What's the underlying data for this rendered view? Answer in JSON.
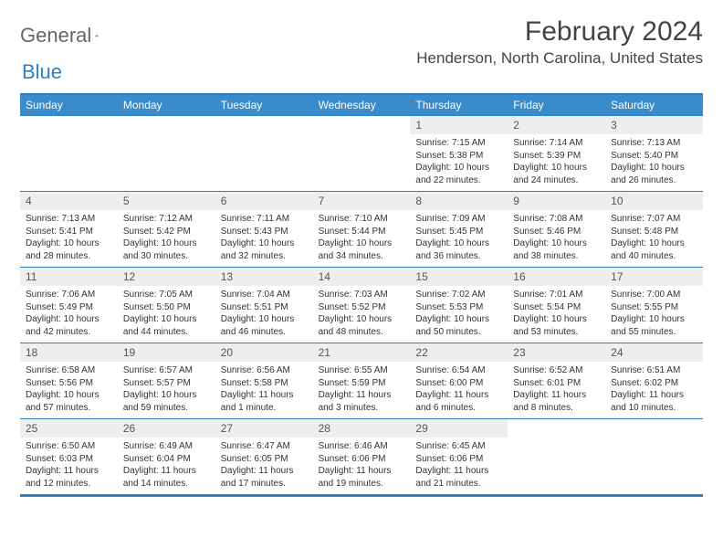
{
  "logo": {
    "word1": "General",
    "word2": "Blue"
  },
  "title": {
    "month": "February 2024",
    "location": "Henderson, North Carolina, United States"
  },
  "colors": {
    "header_bg": "#3a8bc9",
    "border": "#2f7fc3",
    "daynum_bg": "#eeeeee",
    "text": "#333333",
    "title_text": "#444444"
  },
  "daysOfWeek": [
    "Sunday",
    "Monday",
    "Tuesday",
    "Wednesday",
    "Thursday",
    "Friday",
    "Saturday"
  ],
  "weeks": [
    [
      {
        "empty": true
      },
      {
        "empty": true
      },
      {
        "empty": true
      },
      {
        "empty": true
      },
      {
        "num": "1",
        "sunrise": "Sunrise: 7:15 AM",
        "sunset": "Sunset: 5:38 PM",
        "daylight": "Daylight: 10 hours and 22 minutes."
      },
      {
        "num": "2",
        "sunrise": "Sunrise: 7:14 AM",
        "sunset": "Sunset: 5:39 PM",
        "daylight": "Daylight: 10 hours and 24 minutes."
      },
      {
        "num": "3",
        "sunrise": "Sunrise: 7:13 AM",
        "sunset": "Sunset: 5:40 PM",
        "daylight": "Daylight: 10 hours and 26 minutes."
      }
    ],
    [
      {
        "num": "4",
        "sunrise": "Sunrise: 7:13 AM",
        "sunset": "Sunset: 5:41 PM",
        "daylight": "Daylight: 10 hours and 28 minutes."
      },
      {
        "num": "5",
        "sunrise": "Sunrise: 7:12 AM",
        "sunset": "Sunset: 5:42 PM",
        "daylight": "Daylight: 10 hours and 30 minutes."
      },
      {
        "num": "6",
        "sunrise": "Sunrise: 7:11 AM",
        "sunset": "Sunset: 5:43 PM",
        "daylight": "Daylight: 10 hours and 32 minutes."
      },
      {
        "num": "7",
        "sunrise": "Sunrise: 7:10 AM",
        "sunset": "Sunset: 5:44 PM",
        "daylight": "Daylight: 10 hours and 34 minutes."
      },
      {
        "num": "8",
        "sunrise": "Sunrise: 7:09 AM",
        "sunset": "Sunset: 5:45 PM",
        "daylight": "Daylight: 10 hours and 36 minutes."
      },
      {
        "num": "9",
        "sunrise": "Sunrise: 7:08 AM",
        "sunset": "Sunset: 5:46 PM",
        "daylight": "Daylight: 10 hours and 38 minutes."
      },
      {
        "num": "10",
        "sunrise": "Sunrise: 7:07 AM",
        "sunset": "Sunset: 5:48 PM",
        "daylight": "Daylight: 10 hours and 40 minutes."
      }
    ],
    [
      {
        "num": "11",
        "sunrise": "Sunrise: 7:06 AM",
        "sunset": "Sunset: 5:49 PM",
        "daylight": "Daylight: 10 hours and 42 minutes."
      },
      {
        "num": "12",
        "sunrise": "Sunrise: 7:05 AM",
        "sunset": "Sunset: 5:50 PM",
        "daylight": "Daylight: 10 hours and 44 minutes."
      },
      {
        "num": "13",
        "sunrise": "Sunrise: 7:04 AM",
        "sunset": "Sunset: 5:51 PM",
        "daylight": "Daylight: 10 hours and 46 minutes."
      },
      {
        "num": "14",
        "sunrise": "Sunrise: 7:03 AM",
        "sunset": "Sunset: 5:52 PM",
        "daylight": "Daylight: 10 hours and 48 minutes."
      },
      {
        "num": "15",
        "sunrise": "Sunrise: 7:02 AM",
        "sunset": "Sunset: 5:53 PM",
        "daylight": "Daylight: 10 hours and 50 minutes."
      },
      {
        "num": "16",
        "sunrise": "Sunrise: 7:01 AM",
        "sunset": "Sunset: 5:54 PM",
        "daylight": "Daylight: 10 hours and 53 minutes."
      },
      {
        "num": "17",
        "sunrise": "Sunrise: 7:00 AM",
        "sunset": "Sunset: 5:55 PM",
        "daylight": "Daylight: 10 hours and 55 minutes."
      }
    ],
    [
      {
        "num": "18",
        "sunrise": "Sunrise: 6:58 AM",
        "sunset": "Sunset: 5:56 PM",
        "daylight": "Daylight: 10 hours and 57 minutes."
      },
      {
        "num": "19",
        "sunrise": "Sunrise: 6:57 AM",
        "sunset": "Sunset: 5:57 PM",
        "daylight": "Daylight: 10 hours and 59 minutes."
      },
      {
        "num": "20",
        "sunrise": "Sunrise: 6:56 AM",
        "sunset": "Sunset: 5:58 PM",
        "daylight": "Daylight: 11 hours and 1 minute."
      },
      {
        "num": "21",
        "sunrise": "Sunrise: 6:55 AM",
        "sunset": "Sunset: 5:59 PM",
        "daylight": "Daylight: 11 hours and 3 minutes."
      },
      {
        "num": "22",
        "sunrise": "Sunrise: 6:54 AM",
        "sunset": "Sunset: 6:00 PM",
        "daylight": "Daylight: 11 hours and 6 minutes."
      },
      {
        "num": "23",
        "sunrise": "Sunrise: 6:52 AM",
        "sunset": "Sunset: 6:01 PM",
        "daylight": "Daylight: 11 hours and 8 minutes."
      },
      {
        "num": "24",
        "sunrise": "Sunrise: 6:51 AM",
        "sunset": "Sunset: 6:02 PM",
        "daylight": "Daylight: 11 hours and 10 minutes."
      }
    ],
    [
      {
        "num": "25",
        "sunrise": "Sunrise: 6:50 AM",
        "sunset": "Sunset: 6:03 PM",
        "daylight": "Daylight: 11 hours and 12 minutes."
      },
      {
        "num": "26",
        "sunrise": "Sunrise: 6:49 AM",
        "sunset": "Sunset: 6:04 PM",
        "daylight": "Daylight: 11 hours and 14 minutes."
      },
      {
        "num": "27",
        "sunrise": "Sunrise: 6:47 AM",
        "sunset": "Sunset: 6:05 PM",
        "daylight": "Daylight: 11 hours and 17 minutes."
      },
      {
        "num": "28",
        "sunrise": "Sunrise: 6:46 AM",
        "sunset": "Sunset: 6:06 PM",
        "daylight": "Daylight: 11 hours and 19 minutes."
      },
      {
        "num": "29",
        "sunrise": "Sunrise: 6:45 AM",
        "sunset": "Sunset: 6:06 PM",
        "daylight": "Daylight: 11 hours and 21 minutes."
      },
      {
        "empty": true
      },
      {
        "empty": true
      }
    ]
  ]
}
